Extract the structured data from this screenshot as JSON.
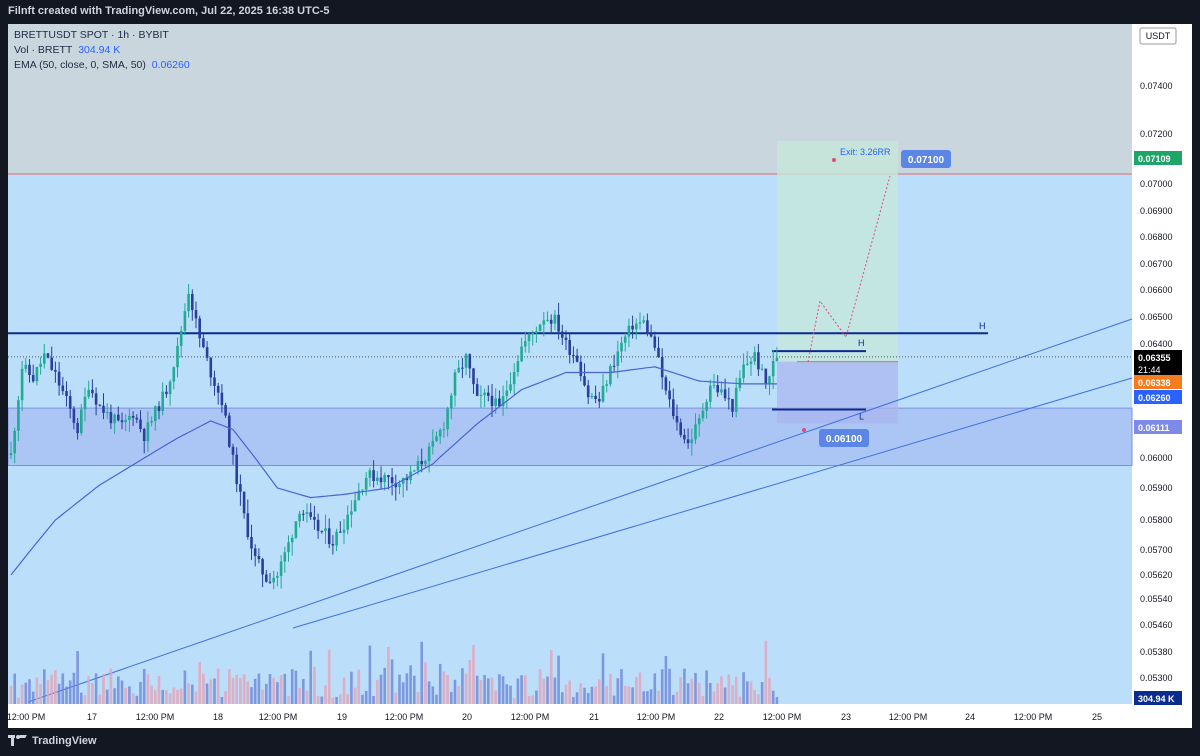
{
  "header": {
    "watermark": "Filnft created with TradingView.com, Jul 22, 2025 16:38 UTC-5"
  },
  "legend": {
    "symbol": "BRETTUSDT SPOT · 1h · BYBIT",
    "volume_label": "Vol · BRETT",
    "volume_value": "304.94 K",
    "ema_label": "EMA (50, close, 0, SMA, 50)",
    "ema_value": "0.06260"
  },
  "footer": {
    "brand": "TradingView"
  },
  "colors": {
    "background": "#bbdefb",
    "up_candle": "#22ab94",
    "down_candle": "#2a3f9c",
    "ema": "#4a63d8",
    "trendline": "#3d6fe0",
    "level_line": "#0d2a8a",
    "target_zone": "#c5e8d9",
    "stop_zone": "#a9b5ee",
    "demand_zone": "#9fb2f0",
    "projection": "#e04b7a"
  },
  "chart_data": {
    "type": "candlestick",
    "symbol": "BRETTUSDT",
    "timeframe": "1h",
    "currency_label": "USDT",
    "y_ticks": [
      "0.07400",
      "0.07200",
      "0.07000",
      "0.06900",
      "0.06800",
      "0.06700",
      "0.06600",
      "0.06500",
      "0.06400",
      "0.06000",
      "0.05900",
      "0.05800",
      "0.05700",
      "0.05620",
      "0.05540",
      "0.05460",
      "0.05380",
      "0.05300"
    ],
    "x_ticks": [
      "12:00 PM",
      "17",
      "12:00 PM",
      "18",
      "12:00 PM",
      "19",
      "12:00 PM",
      "20",
      "12:00 PM",
      "21",
      "12:00 PM",
      "22",
      "12:00 PM",
      "23",
      "12:00 PM",
      "24",
      "12:00 PM",
      "25"
    ],
    "price_badges": [
      {
        "text": "0.07109",
        "color": "#1fa568"
      },
      {
        "text": "0.06355",
        "color": "#000000",
        "sub": "21:44"
      },
      {
        "text": "0.06338",
        "color": "#f57c1f"
      },
      {
        "text": "0.06260",
        "color": "#2962ff"
      },
      {
        "text": "0.06111",
        "color": "#7e8ae8"
      },
      {
        "text": "304.94 K",
        "color": "#0b2c8f"
      }
    ],
    "annotations": {
      "exit_label": "Exit: 3.26RR",
      "target_badge": "0.07100",
      "stop_badge": "0.06100",
      "high_marker": "H",
      "low_marker": "L"
    },
    "levels": {
      "resistance": 0.0644,
      "range_high": 0.06375,
      "range_low": 0.0617,
      "entry": 0.06338,
      "red_level": 0.0704,
      "demand_zone": [
        0.05975,
        0.06175
      ]
    },
    "trade": {
      "entry": 0.06338,
      "target": 0.071,
      "stop": 0.061
    },
    "current_price": 0.06355,
    "ema_value": 0.0626,
    "volume_last": "304.94 K",
    "close_path": [
      [
        0,
        0.0601
      ],
      [
        3,
        0.0632
      ],
      [
        6,
        0.0628
      ],
      [
        9,
        0.0636
      ],
      [
        12,
        0.0629
      ],
      [
        15,
        0.062
      ],
      [
        18,
        0.061
      ],
      [
        21,
        0.0626
      ],
      [
        24,
        0.0618
      ],
      [
        27,
        0.0614
      ],
      [
        30,
        0.0611
      ],
      [
        33,
        0.0616
      ],
      [
        36,
        0.0608
      ],
      [
        39,
        0.0616
      ],
      [
        42,
        0.0624
      ],
      [
        45,
        0.0638
      ],
      [
        48,
        0.066
      ],
      [
        51,
        0.0642
      ],
      [
        54,
        0.063
      ],
      [
        57,
        0.062
      ],
      [
        60,
        0.0599
      ],
      [
        63,
        0.0581
      ],
      [
        66,
        0.0567
      ],
      [
        69,
        0.0561
      ],
      [
        72,
        0.0562
      ],
      [
        75,
        0.0572
      ],
      [
        78,
        0.0584
      ],
      [
        81,
        0.0579
      ],
      [
        84,
        0.0576
      ],
      [
        87,
        0.0573
      ],
      [
        90,
        0.0579
      ],
      [
        93,
        0.0587
      ],
      [
        96,
        0.0594
      ],
      [
        99,
        0.0594
      ],
      [
        102,
        0.0593
      ],
      [
        105,
        0.0592
      ],
      [
        108,
        0.0594
      ],
      [
        111,
        0.0599
      ],
      [
        114,
        0.0604
      ],
      [
        117,
        0.0612
      ],
      [
        120,
        0.0628
      ],
      [
        123,
        0.0635
      ],
      [
        126,
        0.062
      ],
      [
        129,
        0.0622
      ],
      [
        132,
        0.0617
      ],
      [
        135,
        0.0628
      ],
      [
        138,
        0.0639
      ],
      [
        141,
        0.0644
      ],
      [
        144,
        0.065
      ],
      [
        147,
        0.0649
      ],
      [
        150,
        0.064
      ],
      [
        153,
        0.0635
      ],
      [
        156,
        0.0622
      ],
      [
        159,
        0.062
      ],
      [
        162,
        0.0631
      ],
      [
        165,
        0.064
      ],
      [
        168,
        0.0647
      ],
      [
        171,
        0.0648
      ],
      [
        174,
        0.0639
      ],
      [
        177,
        0.0623
      ],
      [
        180,
        0.0612
      ],
      [
        183,
        0.0605
      ],
      [
        186,
        0.0613
      ],
      [
        189,
        0.0626
      ],
      [
        192,
        0.0623
      ],
      [
        195,
        0.0618
      ],
      [
        198,
        0.0632
      ],
      [
        201,
        0.0636
      ],
      [
        204,
        0.0626
      ],
      [
        207,
        0.0636
      ]
    ],
    "ema_path": [
      [
        0,
        0.0562
      ],
      [
        12,
        0.058
      ],
      [
        24,
        0.0591
      ],
      [
        36,
        0.06
      ],
      [
        45,
        0.0607
      ],
      [
        54,
        0.0613
      ],
      [
        60,
        0.061
      ],
      [
        66,
        0.06
      ],
      [
        72,
        0.059
      ],
      [
        81,
        0.0587
      ],
      [
        90,
        0.0588
      ],
      [
        102,
        0.059
      ],
      [
        114,
        0.0598
      ],
      [
        126,
        0.0612
      ],
      [
        138,
        0.0624
      ],
      [
        150,
        0.063
      ],
      [
        162,
        0.063
      ],
      [
        174,
        0.0632
      ],
      [
        186,
        0.0627
      ],
      [
        198,
        0.0626
      ],
      [
        207,
        0.0626
      ]
    ],
    "volume_bars": 208
  }
}
